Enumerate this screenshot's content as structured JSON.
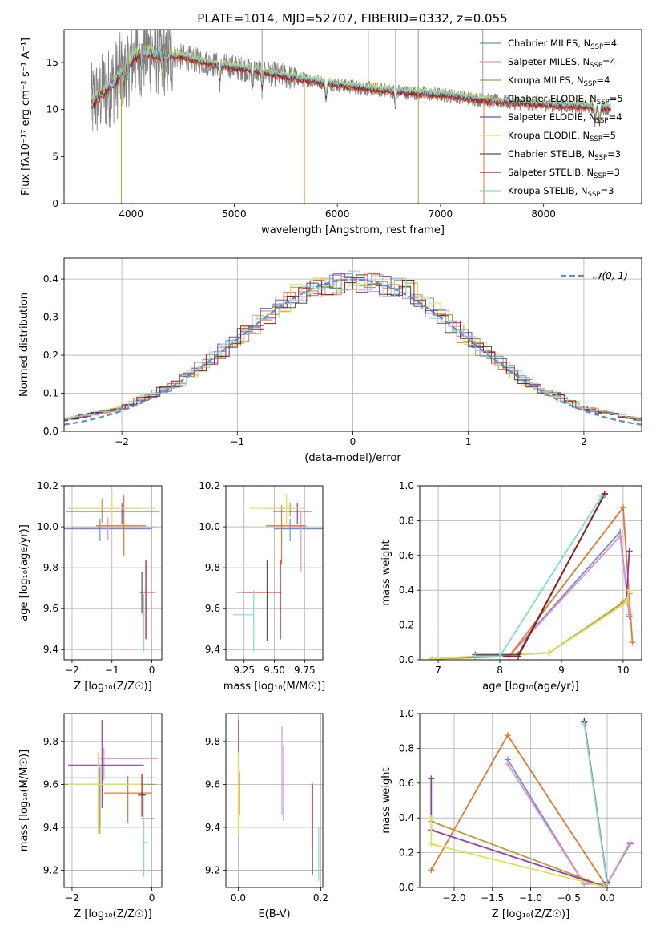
{
  "title": "PLATE=1014, MJD=52707, FIBERID=0332, z=0.055",
  "colors": {
    "Chabrier MILES": "#6b8fd4",
    "Salpeter MILES": "#e88fc0",
    "Kroupa MILES": "#b89b3c",
    "Chabrier ELODIE": "#e07a33",
    "Salpeter ELODIE": "#8e3db0",
    "Kroupa ELODIE": "#d6e84a",
    "Chabrier STELIB": "#555555",
    "Salpeter STELIB": "#9b1b1b",
    "Kroupa STELIB": "#7fd9e0",
    "Gaussian": "#5b8bd0",
    "grid": "#b0b0b0"
  },
  "chart_data": [
    {
      "id": "spectrum",
      "type": "line",
      "xlabel": "wavelength [Angstrom, rest frame]",
      "ylabel": "Flux [fλ10⁻¹⁷ erg cm⁻² s⁻¹ A⁻¹]",
      "xlim": [
        3350,
        8950
      ],
      "ylim": [
        0,
        18.5
      ],
      "xticks": [
        4000,
        5000,
        6000,
        7000,
        8000
      ],
      "yticks": [
        0,
        5,
        10,
        15
      ],
      "grid": false,
      "legend_position": "upper-right",
      "continuum_anchors": {
        "x": [
          3610,
          3700,
          3850,
          3950,
          4100,
          4300,
          4500,
          4800,
          5000,
          5200,
          5500,
          5800,
          6100,
          6400,
          6700,
          7000,
          7300,
          7500,
          7800,
          8100,
          8400,
          8650
        ],
        "y": [
          10.5,
          11.5,
          13.0,
          14.8,
          16.2,
          15.8,
          15.6,
          14.8,
          14.5,
          14.2,
          13.5,
          13.0,
          12.5,
          12.1,
          11.8,
          11.6,
          11.2,
          10.9,
          10.7,
          10.5,
          10.3,
          10.2
        ]
      },
      "model_dips": [
        3933,
        3968,
        4102,
        4300,
        4340,
        4861,
        5175,
        5270,
        5890,
        6563,
        8498,
        8542,
        8662
      ],
      "data_spikes": [
        5270,
        6300,
        6565,
        6785,
        7410
      ],
      "legend": [
        {
          "label": "Chabrier MILES, N",
          "sub": "SSP",
          "n": "=4",
          "color_key": "Chabrier MILES"
        },
        {
          "label": "Salpeter MILES, N",
          "sub": "SSP",
          "n": "=4",
          "color_key": "Salpeter MILES"
        },
        {
          "label": "Kroupa MILES, N",
          "sub": "SSP",
          "n": "=4",
          "color_key": "Kroupa MILES"
        },
        {
          "label": "Chabrier ELODIE, N",
          "sub": "SSP",
          "n": "=5",
          "color_key": "Chabrier ELODIE"
        },
        {
          "label": "Salpeter ELODIE, N",
          "sub": "SSP",
          "n": "=4",
          "color_key": "Salpeter ELODIE"
        },
        {
          "label": "Kroupa ELODIE, N",
          "sub": "SSP",
          "n": "=5",
          "color_key": "Kroupa ELODIE"
        },
        {
          "label": "Chabrier STELIB, N",
          "sub": "SSP",
          "n": "=3",
          "color_key": "Chabrier STELIB"
        },
        {
          "label": "Salpeter STELIB, N",
          "sub": "SSP",
          "n": "=3",
          "color_key": "Salpeter STELIB"
        },
        {
          "label": "Kroupa STELIB, N",
          "sub": "SSP",
          "n": "=3",
          "color_key": "Kroupa STELIB"
        }
      ]
    },
    {
      "id": "residuals",
      "type": "line",
      "xlabel": "(data-model)/error",
      "ylabel": "Normed distribution",
      "xlim": [
        -2.5,
        2.5
      ],
      "ylim": [
        0,
        0.455
      ],
      "xticks": [
        -2,
        -1,
        0,
        1,
        2
      ],
      "yticks": [
        0.0,
        0.1,
        0.2,
        0.3,
        0.4
      ],
      "grid": true,
      "legend_label": "𝒩(0, 1)",
      "legend_position": "upper-right",
      "bin_width": 0.1,
      "histogram_shape": {
        "x": [
          -2.5,
          -2.0,
          -1.5,
          -1.0,
          -0.5,
          0.0,
          0.5,
          1.0,
          1.5,
          2.0,
          2.5
        ],
        "y": [
          0.03,
          0.06,
          0.13,
          0.24,
          0.36,
          0.4,
          0.37,
          0.24,
          0.13,
          0.06,
          0.03
        ]
      }
    },
    {
      "id": "age_vs_Z",
      "type": "scatter",
      "xlabel": "Z [log₁₀(Z/Z☉)]",
      "ylabel": "age  [log₁₀(age/yr)]",
      "xlim": [
        -2.2,
        0.25
      ],
      "ylim": [
        9.35,
        10.2
      ],
      "xticks": [
        -2,
        -1,
        0
      ],
      "yticks": [
        9.4,
        9.6,
        9.8,
        10.0,
        10.2
      ],
      "grid": true,
      "points": [
        {
          "key": "Chabrier MILES",
          "x": -1.3,
          "y": 9.99,
          "xerr": [
            0.9,
            1.3
          ],
          "yerr": [
            0.06,
            0.05
          ]
        },
        {
          "key": "Salpeter MILES",
          "x": -1.1,
          "y": 9.995,
          "xerr": [
            0.9,
            1.25
          ],
          "yerr": [
            0.06,
            0.05
          ]
        },
        {
          "key": "Kroupa MILES",
          "x": -1.25,
          "y": 10.09,
          "xerr": [
            0.85,
            0.95
          ],
          "yerr": [
            0.07,
            0.05
          ]
        },
        {
          "key": "Chabrier ELODIE",
          "x": -0.7,
          "y": 10.005,
          "xerr": [
            0.7,
            0.55
          ],
          "yerr": [
            0.15,
            0.15
          ]
        },
        {
          "key": "Salpeter ELODIE",
          "x": -0.75,
          "y": 10.075,
          "xerr": [
            1.4,
            0.95
          ],
          "yerr": [
            0.06,
            0.04
          ]
        },
        {
          "key": "Kroupa ELODIE",
          "x": -1.0,
          "y": 10.09,
          "xerr": [
            1.1,
            1.1
          ],
          "yerr": [
            0.07,
            0.07
          ]
        },
        {
          "key": "Chabrier STELIB",
          "x": -0.25,
          "y": 9.68,
          "xerr": [
            0.05,
            0.0
          ],
          "yerr": [
            0.1,
            0.1
          ]
        },
        {
          "key": "Salpeter STELIB",
          "x": -0.15,
          "y": 9.68,
          "xerr": [
            0.15,
            0.25
          ],
          "yerr": [
            0.23,
            0.16
          ]
        },
        {
          "key": "Kroupa STELIB",
          "x": -0.2,
          "y": 9.57,
          "xerr": [
            0.05,
            0.05
          ],
          "yerr": [
            0.18,
            0.1
          ]
        }
      ]
    },
    {
      "id": "age_vs_mass",
      "type": "scatter",
      "xlabel": "mass [log₁₀(M/M☉)]",
      "ylabel": "",
      "xlim": [
        9.1,
        9.9
      ],
      "ylim": [
        9.35,
        10.2
      ],
      "xticks": [
        9.25,
        9.5,
        9.75
      ],
      "yticks": [
        9.4,
        9.6,
        9.8,
        10.0,
        10.2
      ],
      "grid": true,
      "points": [
        {
          "key": "Chabrier MILES",
          "x": 9.63,
          "y": 9.99,
          "xerr": [
            0.13,
            0.27
          ],
          "yerr": [
            0.06,
            0.05
          ]
        },
        {
          "key": "Salpeter MILES",
          "x": 9.72,
          "y": 10.0,
          "xerr": [
            0.1,
            0.05
          ],
          "yerr": [
            0.22,
            0.07
          ]
        },
        {
          "key": "Kroupa MILES",
          "x": 9.63,
          "y": 10.09,
          "xerr": [
            0.2,
            0.06
          ],
          "yerr": [
            0.04,
            0.03
          ]
        },
        {
          "key": "Chabrier ELODIE",
          "x": 9.56,
          "y": 10.005,
          "xerr": [
            0.13,
            0.2
          ],
          "yerr": [
            0.19,
            0.1
          ]
        },
        {
          "key": "Salpeter ELODIE",
          "x": 9.69,
          "y": 10.075,
          "xerr": [
            0.2,
            0.12
          ],
          "yerr": [
            0.06,
            0.04
          ]
        },
        {
          "key": "Kroupa ELODIE",
          "x": 9.6,
          "y": 10.09,
          "xerr": [
            0.3,
            0.15
          ],
          "yerr": [
            0.08,
            0.07
          ]
        },
        {
          "key": "Chabrier STELIB",
          "x": 9.44,
          "y": 9.68,
          "xerr": [
            0.25,
            0.12
          ],
          "yerr": [
            0.24,
            0.16
          ]
        },
        {
          "key": "Salpeter STELIB",
          "x": 9.55,
          "y": 9.68,
          "xerr": [
            0.3,
            0.0
          ],
          "yerr": [
            0.23,
            0.16
          ]
        },
        {
          "key": "Kroupa STELIB",
          "x": 9.33,
          "y": 9.57,
          "xerr": [
            0.17,
            0.0
          ],
          "yerr": [
            0.18,
            0.12
          ]
        }
      ]
    },
    {
      "id": "weight_vs_age",
      "type": "line",
      "xlabel": "age  [log₁₀(age/yr)]",
      "ylabel": "mass weight",
      "xlim": [
        6.7,
        10.3
      ],
      "ylim": [
        0,
        1.0
      ],
      "xticks": [
        7,
        8,
        9,
        10
      ],
      "yticks": [
        0.0,
        0.2,
        0.4,
        0.6,
        0.8,
        1.0
      ],
      "grid": true,
      "series": [
        {
          "key": "Chabrier MILES",
          "x": [
            7.6,
            8.15,
            9.95,
            10.1
          ],
          "y": [
            0.02,
            0.02,
            0.735,
            0.25
          ]
        },
        {
          "key": "Salpeter MILES",
          "x": [
            7.6,
            8.15,
            9.95,
            10.1
          ],
          "y": [
            0.02,
            0.02,
            0.71,
            0.26
          ]
        },
        {
          "key": "Kroupa MILES",
          "x": [
            6.9,
            8.8,
            10.0,
            10.1
          ],
          "y": [
            0.005,
            0.04,
            0.33,
            0.38
          ]
        },
        {
          "key": "Chabrier ELODIE",
          "x": [
            6.9,
            8.15,
            10.0,
            10.15
          ],
          "y": [
            0.005,
            0.02,
            0.875,
            0.1
          ]
        },
        {
          "key": "Salpeter ELODIE",
          "x": [
            6.9,
            7.6,
            8.8,
            10.05,
            10.1
          ],
          "y": [
            0.005,
            0.02,
            0.04,
            0.33,
            0.625
          ]
        },
        {
          "key": "Kroupa ELODIE",
          "x": [
            6.9,
            7.6,
            8.8,
            10.05,
            10.1
          ],
          "y": [
            0.005,
            0.02,
            0.04,
            0.33,
            0.4
          ]
        },
        {
          "key": "Chabrier STELIB",
          "x": [
            7.6,
            8.3,
            9.7
          ],
          "y": [
            0.03,
            0.03,
            0.95
          ]
        },
        {
          "key": "Salpeter STELIB",
          "x": [
            7.6,
            8.3,
            9.7
          ],
          "y": [
            0.02,
            0.02,
            0.955
          ]
        },
        {
          "key": "Kroupa STELIB",
          "x": [
            7.6,
            8.0,
            9.65
          ],
          "y": [
            0.02,
            0.02,
            0.94
          ]
        }
      ]
    },
    {
      "id": "mass_vs_Z",
      "type": "scatter",
      "xlabel": "Z [log₁₀(Z/Z☉)]",
      "ylabel": "mass [log₁₀(M/M☉)]",
      "xlim": [
        -2.2,
        0.25
      ],
      "ylim": [
        9.12,
        9.93
      ],
      "xticks": [
        -2,
        0
      ],
      "yticks": [
        9.2,
        9.4,
        9.6,
        9.8
      ],
      "grid": true,
      "points": [
        {
          "key": "Chabrier MILES",
          "x": -1.3,
          "y": 9.63,
          "xerr": [
            0.9,
            1.4
          ],
          "yerr": [
            0.23,
            0.05
          ]
        },
        {
          "key": "Salpeter MILES",
          "x": -1.2,
          "y": 9.72,
          "xerr": [
            0.1,
            1.35
          ],
          "yerr": [
            0.1,
            0.05
          ]
        },
        {
          "key": "Kroupa MILES",
          "x": -1.3,
          "y": 9.6,
          "xerr": [
            0.9,
            1.4
          ],
          "yerr": [
            0.23,
            0.05
          ]
        },
        {
          "key": "Chabrier ELODIE",
          "x": -0.6,
          "y": 9.56,
          "xerr": [
            0.6,
            0.6
          ],
          "yerr": [
            0.14,
            0.08
          ]
        },
        {
          "key": "Salpeter ELODIE",
          "x": -1.25,
          "y": 9.69,
          "xerr": [
            0.85,
            1.05
          ],
          "yerr": [
            0.2,
            0.21
          ]
        },
        {
          "key": "Kroupa ELODIE",
          "x": -1.35,
          "y": 9.6,
          "xerr": [
            0.75,
            1.15
          ],
          "yerr": [
            0.23,
            0.15
          ]
        },
        {
          "key": "Chabrier STELIB",
          "x": -0.22,
          "y": 9.44,
          "xerr": [
            0.05,
            0.28
          ],
          "yerr": [
            0.27,
            0.11
          ]
        },
        {
          "key": "Salpeter STELIB",
          "x": -0.25,
          "y": 9.55,
          "xerr": [
            0.1,
            0.1
          ],
          "yerr": [
            0.1,
            0.1
          ]
        },
        {
          "key": "Kroupa STELIB",
          "x": -0.2,
          "y": 9.33,
          "xerr": [
            0.05,
            0.1
          ],
          "yerr": [
            0.16,
            0.1
          ]
        }
      ]
    },
    {
      "id": "mass_vs_EBV",
      "type": "scatter",
      "xlabel": "E(B-V)",
      "ylabel": "",
      "xlim": [
        -0.03,
        0.205
      ],
      "ylim": [
        9.12,
        9.93
      ],
      "xticks": [
        0.0,
        0.2
      ],
      "yticks": [
        9.2,
        9.4,
        9.6,
        9.8
      ],
      "grid": true,
      "points": [
        {
          "key": "Chabrier MILES",
          "x": 0.11,
          "y": 9.63,
          "xerr": [
            0,
            0
          ],
          "yerr": [
            0.2,
            0.15
          ]
        },
        {
          "key": "Salpeter MILES",
          "x": 0.106,
          "y": 9.72,
          "xerr": [
            0,
            0
          ],
          "yerr": [
            0.26,
            0.15
          ]
        },
        {
          "key": "Kroupa MILES",
          "x": 0.002,
          "y": 9.6,
          "xerr": [
            0,
            0
          ],
          "yerr": [
            0.23,
            0.2
          ]
        },
        {
          "key": "Chabrier ELODIE",
          "x": 0.003,
          "y": 9.56,
          "xerr": [
            0,
            0
          ],
          "yerr": [
            0.1,
            0.1
          ]
        },
        {
          "key": "Salpeter ELODIE",
          "x": 0.001,
          "y": 9.69,
          "xerr": [
            0,
            0
          ],
          "yerr": [
            0.05,
            0.21
          ]
        },
        {
          "key": "Kroupa ELODIE",
          "x": 0.0,
          "y": 9.6,
          "xerr": [
            0,
            0
          ],
          "yerr": [
            0.23,
            0.15
          ]
        },
        {
          "key": "Chabrier STELIB",
          "x": 0.18,
          "y": 9.44,
          "xerr": [
            0,
            0
          ],
          "yerr": [
            0.26,
            0.16
          ]
        },
        {
          "key": "Salpeter STELIB",
          "x": 0.179,
          "y": 9.55,
          "xerr": [
            0,
            0
          ],
          "yerr": [
            0.24,
            0.06
          ]
        },
        {
          "key": "Kroupa STELIB",
          "x": 0.195,
          "y": 9.33,
          "xerr": [
            0,
            0
          ],
          "yerr": [
            0.18,
            0.07
          ]
        }
      ]
    },
    {
      "id": "weight_vs_Z",
      "type": "line",
      "xlabel": "Z [log₁₀(Z/Z☉)]",
      "ylabel": "mass weight",
      "xlim": [
        -2.45,
        0.45
      ],
      "ylim": [
        0,
        1.0
      ],
      "xticks": [
        -2.0,
        -1.5,
        -1.0,
        -0.5,
        0.0
      ],
      "yticks": [
        0.0,
        0.2,
        0.4,
        0.6,
        0.8,
        1.0
      ],
      "grid": true,
      "series": [
        {
          "key": "Chabrier MILES",
          "x": [
            -1.3,
            -0.3,
            0.0,
            0.3
          ],
          "y": [
            0.735,
            0.02,
            0.02,
            0.25
          ]
        },
        {
          "key": "Salpeter MILES",
          "x": [
            -1.3,
            -0.3,
            0.0,
            0.3
          ],
          "y": [
            0.71,
            0.02,
            0.02,
            0.26
          ]
        },
        {
          "key": "Kroupa MILES",
          "x": [
            -2.3,
            0.0,
            0.0
          ],
          "y": [
            0.38,
            0.0,
            0.02
          ]
        },
        {
          "key": "Chabrier ELODIE",
          "x": [
            -2.3,
            -1.3,
            0.0
          ],
          "y": [
            0.1,
            0.875,
            0.0
          ]
        },
        {
          "key": "Salpeter ELODIE",
          "x": [
            -2.3,
            -2.3,
            -2.3,
            0.0,
            0.0
          ],
          "y": [
            0.625,
            0.33,
            0.33,
            0.0,
            0.02
          ]
        },
        {
          "key": "Kroupa ELODIE",
          "x": [
            -2.3,
            -2.3,
            0.0,
            0.0
          ],
          "y": [
            0.4,
            0.25,
            0.0,
            0.02
          ]
        },
        {
          "key": "Chabrier STELIB",
          "x": [
            -0.3,
            0.0
          ],
          "y": [
            0.95,
            0.03
          ]
        },
        {
          "key": "Salpeter STELIB",
          "x": [
            -0.3,
            0.0
          ],
          "y": [
            0.955,
            0.02
          ]
        },
        {
          "key": "Kroupa STELIB",
          "x": [
            -0.3,
            0.0
          ],
          "y": [
            0.94,
            0.02
          ]
        }
      ]
    }
  ]
}
